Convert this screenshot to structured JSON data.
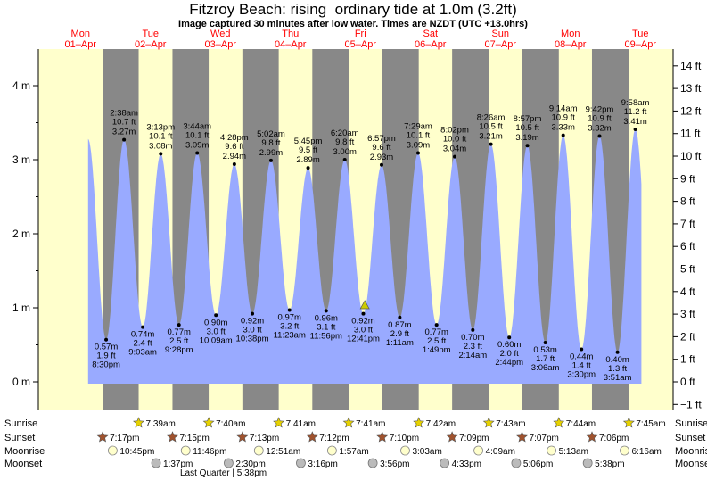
{
  "chart_data": {
    "type": "area",
    "title": "Fitzroy Beach: rising  ordinary tide at 1.0m (3.2ft)",
    "subtitle": "Image captured 30 minutes after low water. Times are NZDT (UTC +13.0hrs)",
    "y_ticks_m": [
      "0 m",
      "1 m",
      "2 m",
      "3 m",
      "4 m"
    ],
    "y_ticks_ft": [
      "−1 ft",
      "0 ft",
      "1 ft",
      "2 ft",
      "3 ft",
      "4 ft",
      "5 ft",
      "6 ft",
      "7 ft",
      "8 ft",
      "9 ft",
      "10 ft",
      "11 ft",
      "12 ft",
      "13 ft",
      "14 ft"
    ],
    "ylim_m": [
      -0.25,
      4.35
    ],
    "days": [
      {
        "name": "Mon",
        "date": "01–Apr"
      },
      {
        "name": "Tue",
        "date": "02–Apr"
      },
      {
        "name": "Wed",
        "date": "03–Apr"
      },
      {
        "name": "Thu",
        "date": "04–Apr"
      },
      {
        "name": "Fri",
        "date": "05–Apr"
      },
      {
        "name": "Sat",
        "date": "06–Apr"
      },
      {
        "name": "Sun",
        "date": "07–Apr"
      },
      {
        "name": "Mon",
        "date": "08–Apr"
      },
      {
        "name": "Tue",
        "date": "09–Apr"
      }
    ],
    "extremes": [
      {
        "type": "low",
        "time": "8:30 pm",
        "day_offset": 0,
        "hour": 20.5,
        "m": 0.57,
        "m_label": "0.57 m",
        "ft_label": "1.9 ft"
      },
      {
        "type": "high",
        "time": "2:38 am",
        "day_offset": 1,
        "hour": 2.633,
        "m": 3.27,
        "m_label": "3.27 m",
        "ft_label": "10.7 ft"
      },
      {
        "type": "low",
        "time": "9:03 am",
        "day_offset": 1,
        "hour": 9.05,
        "m": 0.74,
        "m_label": "0.74 m",
        "ft_label": "2.4 ft"
      },
      {
        "type": "high",
        "time": "3:13 pm",
        "day_offset": 1,
        "hour": 15.217,
        "m": 3.08,
        "m_label": "3.08 m",
        "ft_label": "10.1 ft"
      },
      {
        "type": "low",
        "time": "9:28 pm",
        "day_offset": 1,
        "hour": 21.467,
        "m": 0.77,
        "m_label": "0.77 m",
        "ft_label": "2.5 ft"
      },
      {
        "type": "high",
        "time": "3:44 am",
        "day_offset": 2,
        "hour": 3.733,
        "m": 3.09,
        "m_label": "3.09 m",
        "ft_label": "10.1 ft"
      },
      {
        "type": "low",
        "time": "10:09 am",
        "day_offset": 2,
        "hour": 10.15,
        "m": 0.9,
        "m_label": "0.90 m",
        "ft_label": "3.0 ft"
      },
      {
        "type": "high",
        "time": "4:28 pm",
        "day_offset": 2,
        "hour": 16.467,
        "m": 2.94,
        "m_label": "2.94 m",
        "ft_label": "9.6 ft"
      },
      {
        "type": "low",
        "time": "10:38 pm",
        "day_offset": 2,
        "hour": 22.633,
        "m": 0.92,
        "m_label": "0.92 m",
        "ft_label": "3.0 ft"
      },
      {
        "type": "high",
        "time": "5:02 am",
        "day_offset": 3,
        "hour": 5.033,
        "m": 2.99,
        "m_label": "2.99 m",
        "ft_label": "9.8 ft"
      },
      {
        "type": "low",
        "time": "11:23 am",
        "day_offset": 3,
        "hour": 11.383,
        "m": 0.97,
        "m_label": "0.97 m",
        "ft_label": "3.2 ft"
      },
      {
        "type": "high",
        "time": "5:45 pm",
        "day_offset": 3,
        "hour": 17.75,
        "m": 2.89,
        "m_label": "2.89 m",
        "ft_label": "9.5 ft"
      },
      {
        "type": "low",
        "time": "11:56 pm",
        "day_offset": 3,
        "hour": 23.933,
        "m": 0.96,
        "m_label": "0.96 m",
        "ft_label": "3.1 ft"
      },
      {
        "type": "high",
        "time": "6:20 am",
        "day_offset": 4,
        "hour": 6.333,
        "m": 3.0,
        "m_label": "3.00 m",
        "ft_label": "9.8 ft"
      },
      {
        "type": "low",
        "time": "12:41 pm",
        "day_offset": 4,
        "hour": 12.683,
        "m": 0.92,
        "m_label": "0.92 m",
        "ft_label": "3.0 ft"
      },
      {
        "type": "high",
        "time": "6:57 pm",
        "day_offset": 4,
        "hour": 18.95,
        "m": 2.93,
        "m_label": "2.93 m",
        "ft_label": "9.6 ft"
      },
      {
        "type": "low",
        "time": "1:11 am",
        "day_offset": 5,
        "hour": 1.183,
        "m": 0.87,
        "m_label": "0.87 m",
        "ft_label": "2.9 ft"
      },
      {
        "type": "high",
        "time": "7:29 am",
        "day_offset": 5,
        "hour": 7.483,
        "m": 3.09,
        "m_label": "3.09 m",
        "ft_label": "10.1 ft"
      },
      {
        "type": "low",
        "time": "1:49 pm",
        "day_offset": 5,
        "hour": 13.817,
        "m": 0.77,
        "m_label": "0.77 m",
        "ft_label": "2.5 ft"
      },
      {
        "type": "high",
        "time": "8:02 pm",
        "day_offset": 5,
        "hour": 20.033,
        "m": 3.04,
        "m_label": "3.04 m",
        "ft_label": "10.0 ft"
      },
      {
        "type": "low",
        "time": "2:14 am",
        "day_offset": 6,
        "hour": 2.233,
        "m": 0.7,
        "m_label": "0.70 m",
        "ft_label": "2.3 ft"
      },
      {
        "type": "high",
        "time": "8:26 am",
        "day_offset": 6,
        "hour": 8.433,
        "m": 3.21,
        "m_label": "3.21 m",
        "ft_label": "10.5 ft"
      },
      {
        "type": "low",
        "time": "2:44 pm",
        "day_offset": 6,
        "hour": 14.733,
        "m": 0.6,
        "m_label": "0.60 m",
        "ft_label": "2.0 ft"
      },
      {
        "type": "high",
        "time": "8:57 pm",
        "day_offset": 6,
        "hour": 20.95,
        "m": 3.19,
        "m_label": "3.19 m",
        "ft_label": "10.5 ft"
      },
      {
        "type": "low",
        "time": "3:06 am",
        "day_offset": 7,
        "hour": 3.1,
        "m": 0.53,
        "m_label": "0.53 m",
        "ft_label": "1.7 ft"
      },
      {
        "type": "high",
        "time": "9:14 am",
        "day_offset": 7,
        "hour": 9.233,
        "m": 3.33,
        "m_label": "3.33 m",
        "ft_label": "10.9 ft"
      },
      {
        "type": "low",
        "time": "3:30 pm",
        "day_offset": 7,
        "hour": 15.5,
        "m": 0.44,
        "m_label": "0.44 m",
        "ft_label": "1.4 ft"
      },
      {
        "type": "high",
        "time": "9:42 pm",
        "day_offset": 7,
        "hour": 21.7,
        "m": 3.32,
        "m_label": "3.32 m",
        "ft_label": "10.9 ft"
      },
      {
        "type": "low",
        "time": "3:51 am",
        "day_offset": 8,
        "hour": 3.85,
        "m": 0.4,
        "m_label": "0.40 m",
        "ft_label": "1.3 ft"
      },
      {
        "type": "high",
        "time": "9:58 am",
        "day_offset": 8,
        "hour": 9.967,
        "m": 3.41,
        "m_label": "3.41 m",
        "ft_label": "11.2 ft"
      }
    ],
    "current_marker": {
      "day_offset": 4,
      "hour": 13.2,
      "m": 1.0
    },
    "sunrise": [
      {
        "day_offset": 1,
        "hour": 7.65,
        "time": "7:39am"
      },
      {
        "day_offset": 2,
        "hour": 7.667,
        "time": "7:40am"
      },
      {
        "day_offset": 3,
        "hour": 7.683,
        "time": "7:41am"
      },
      {
        "day_offset": 4,
        "hour": 7.683,
        "time": "7:41am"
      },
      {
        "day_offset": 5,
        "hour": 7.7,
        "time": "7:42am"
      },
      {
        "day_offset": 6,
        "hour": 7.717,
        "time": "7:43am"
      },
      {
        "day_offset": 7,
        "hour": 7.733,
        "time": "7:44am"
      },
      {
        "day_offset": 8,
        "hour": 7.75,
        "time": "7:45am"
      }
    ],
    "sunset": [
      {
        "day_offset": 0,
        "hour": 19.283,
        "time": "7:17pm"
      },
      {
        "day_offset": 1,
        "hour": 19.25,
        "time": "7:15pm"
      },
      {
        "day_offset": 2,
        "hour": 19.217,
        "time": "7:13pm"
      },
      {
        "day_offset": 3,
        "hour": 19.2,
        "time": "7:12pm"
      },
      {
        "day_offset": 4,
        "hour": 19.167,
        "time": "7:10pm"
      },
      {
        "day_offset": 5,
        "hour": 19.15,
        "time": "7:09pm"
      },
      {
        "day_offset": 6,
        "hour": 19.117,
        "time": "7:07pm"
      },
      {
        "day_offset": 7,
        "hour": 19.1,
        "time": "7:06pm"
      }
    ],
    "moonrise": [
      {
        "day_offset": 0,
        "hour": 22.75,
        "time": "10:45pm"
      },
      {
        "day_offset": 1,
        "hour": 23.767,
        "time": "11:46pm"
      },
      {
        "day_offset": 3,
        "hour": 0.85,
        "time": "12:51am"
      },
      {
        "day_offset": 4,
        "hour": 1.95,
        "time": "1:57am"
      },
      {
        "day_offset": 5,
        "hour": 3.05,
        "time": "3:03am"
      },
      {
        "day_offset": 6,
        "hour": 4.15,
        "time": "4:09am"
      },
      {
        "day_offset": 7,
        "hour": 5.217,
        "time": "5:13am"
      },
      {
        "day_offset": 8,
        "hour": 6.267,
        "time": "6:16am"
      }
    ],
    "moonset": [
      {
        "day_offset": 1,
        "hour": 13.617,
        "time": "1:37pm"
      },
      {
        "day_offset": 2,
        "hour": 14.5,
        "time": "2:30pm"
      },
      {
        "day_offset": 3,
        "hour": 15.267,
        "time": "3:16pm"
      },
      {
        "day_offset": 4,
        "hour": 15.933,
        "time": "3:56pm"
      },
      {
        "day_offset": 5,
        "hour": 16.55,
        "time": "4:33pm"
      },
      {
        "day_offset": 6,
        "hour": 17.1,
        "time": "5:06pm"
      },
      {
        "day_offset": 7,
        "hour": 17.633,
        "time": "5:38pm"
      }
    ],
    "moon_phase_note": "Last Quarter | 5:38pm",
    "row_labels": {
      "sunrise": "Sunrise",
      "sunset": "Sunset",
      "moonrise": "Moonrise",
      "moonset": "Moonset"
    },
    "colors": {
      "background": "#ffffff",
      "day": "#ffffcc",
      "night": "#888888",
      "tide_fill": "#99aaff",
      "day_label": "#ff0000",
      "sun_icon": "#e6d200",
      "sunset_icon": "#a0522d",
      "moon_rise": "#ffffcc",
      "moon_set": "#bbbbbb",
      "marker": "#cccc00"
    }
  }
}
